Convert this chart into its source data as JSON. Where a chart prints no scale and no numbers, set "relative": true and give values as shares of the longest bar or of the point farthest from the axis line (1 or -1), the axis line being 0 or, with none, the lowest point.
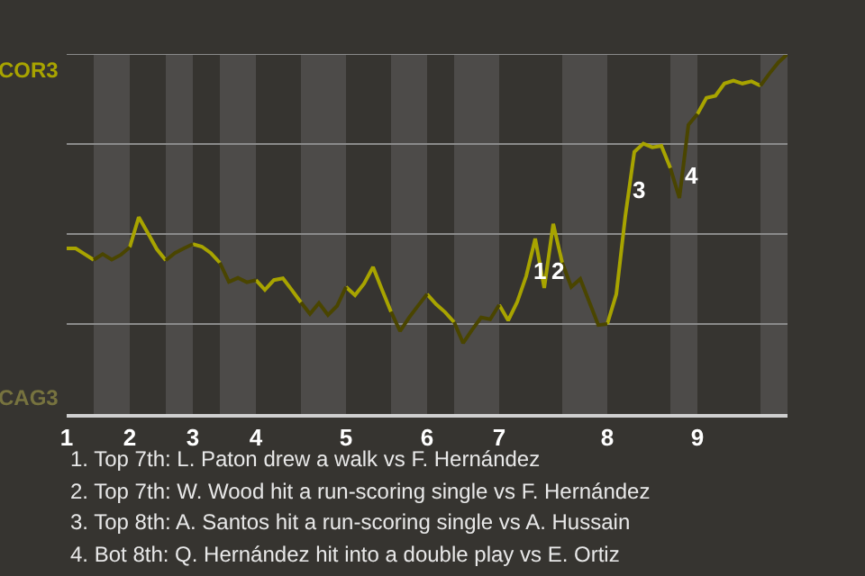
{
  "chart_data": {
    "type": "line",
    "relative": true,
    "grid": "y",
    "marker": "none",
    "line_style": "solid",
    "categories": [
      "1",
      null,
      null,
      null,
      null,
      null,
      null,
      "2",
      null,
      null,
      null,
      null,
      null,
      null,
      "3",
      null,
      null,
      null,
      null,
      null,
      null,
      "4",
      null,
      null,
      null,
      null,
      null,
      null,
      null,
      null,
      null,
      "5",
      null,
      null,
      null,
      null,
      null,
      null,
      null,
      null,
      "6",
      null,
      null,
      null,
      null,
      null,
      null,
      null,
      "7",
      null,
      null,
      null,
      null,
      null,
      null,
      null,
      null,
      null,
      null,
      null,
      "8",
      null,
      null,
      null,
      null,
      null,
      null,
      null,
      null,
      null,
      "9",
      null,
      null,
      null,
      null,
      null,
      null,
      null,
      null,
      null,
      null
    ],
    "series": [
      {
        "color": "#a8a400",
        "values": [
          0.46,
          0.46,
          0.444,
          0.428,
          null,
          null,
          null,
          0.463,
          0.547,
          0.503,
          0.458,
          0.427,
          null,
          null,
          0.472,
          0.465,
          0.447,
          0.42,
          null,
          null,
          null,
          0.372,
          0.345,
          0.372,
          0.377,
          0.344,
          0.31,
          null,
          null,
          null,
          null,
          0.353,
          0.33,
          0.362,
          0.408,
          0.345,
          0.284,
          null,
          null,
          null,
          0.333,
          0.305,
          0.283,
          0.255,
          null,
          null,
          null,
          null,
          0.303,
          0.26,
          0.311,
          0.383,
          0.487,
          0.35,
          0.528,
          0.42,
          null,
          null,
          null,
          null,
          0.25,
          0.333,
          0.55,
          0.728,
          0.751,
          0.741,
          0.745,
          0.683,
          null,
          null,
          0.833,
          0.878,
          0.884,
          0.918,
          0.926,
          0.918,
          0.924,
          0.912,
          null,
          null,
          null
        ]
      },
      {
        "color": "#4a4500",
        "values": [
          null,
          null,
          null,
          0.428,
          0.444,
          0.429,
          0.442,
          0.463,
          null,
          null,
          null,
          0.427,
          0.447,
          0.46,
          0.472,
          null,
          null,
          0.42,
          0.367,
          0.378,
          0.366,
          0.372,
          null,
          null,
          null,
          null,
          0.31,
          0.278,
          0.308,
          0.275,
          0.3,
          0.353,
          null,
          null,
          null,
          null,
          0.284,
          0.23,
          0.268,
          0.301,
          0.333,
          null,
          null,
          0.255,
          0.197,
          0.234,
          0.268,
          0.263,
          0.303,
          null,
          null,
          null,
          null,
          null,
          null,
          0.42,
          0.353,
          0.375,
          0.311,
          0.247,
          0.25,
          null,
          null,
          null,
          null,
          null,
          null,
          0.683,
          0.6,
          0.803,
          0.833,
          null,
          null,
          null,
          null,
          null,
          null,
          0.912,
          0.946,
          0.977,
          1.0
        ]
      }
    ],
    "annotations": [
      "COR3",
      "CAG3",
      "1. Top 7th: L. Paton drew a walk vs F. Hernández",
      "2. Top 7th: W. Wood hit a run-scoring single vs F. Hernández",
      "3. Top 8th: A. Santos hit a run-scoring single vs A. Hussain",
      "4. Bot 8th: Q. Hernández hit into a double play vs E. Ortiz",
      "1",
      "2",
      "3",
      "4"
    ]
  }
}
